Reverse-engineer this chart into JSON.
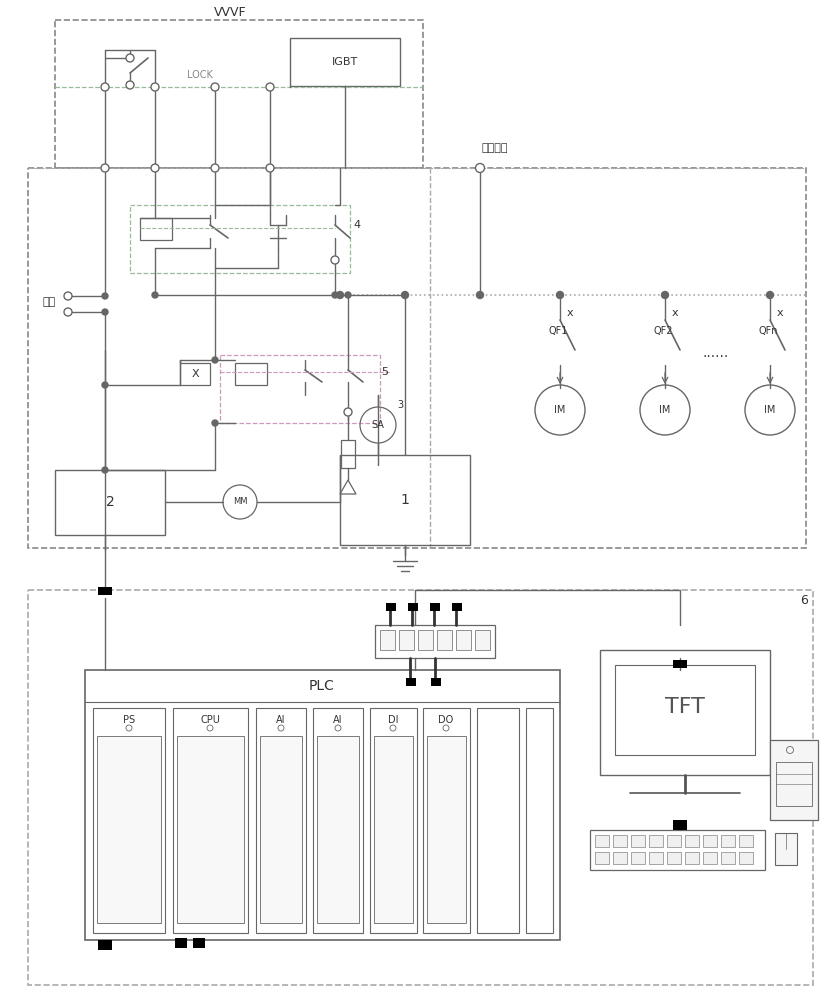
{
  "fig_width": 8.3,
  "fig_height": 10.0,
  "dpi": 100,
  "bg": "#ffffff",
  "lc": "#666666",
  "dc": "#aaaaaa",
  "gc": "#99bb99",
  "pc": "#cc99bb",
  "vvvf_label": "VVVF",
  "igbt_label": "IGBT",
  "lock_label": "LOCK",
  "ctrl_label": "控制电源",
  "nk_label": "内控",
  "sa_label": "SA",
  "mm_label": "MM",
  "plc_label": "PLC",
  "tft_label": "TFT",
  "label_1": "1",
  "label_2": "2",
  "label_3": "3",
  "label_4": "4",
  "label_5": "5",
  "label_6": "6",
  "qf1": "QF1",
  "qf2": "QF2",
  "qfn": "QFn",
  "im": "IM",
  "ps": "PS",
  "cpu": "CPU",
  "ai": "AI",
  "di": "DI",
  "do_lbl": "DO"
}
